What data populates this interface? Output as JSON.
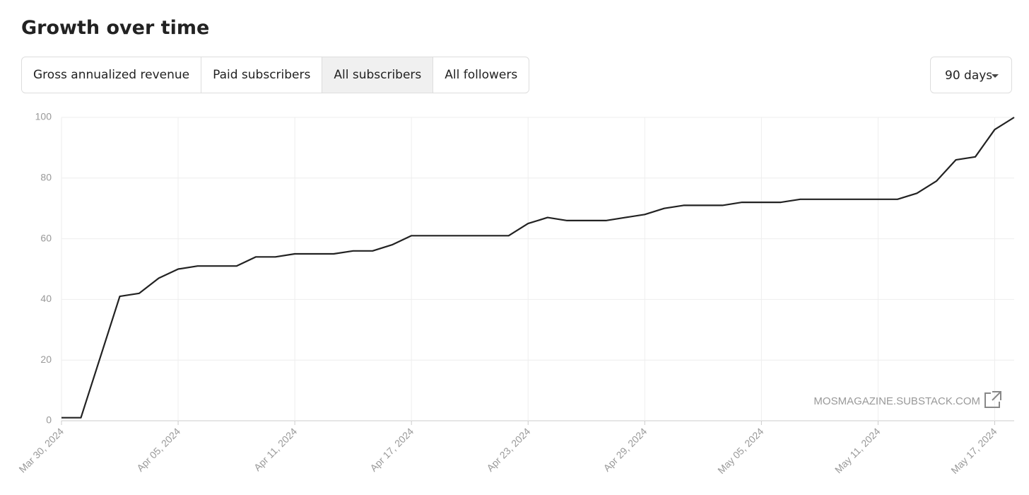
{
  "chart_data": {
    "type": "line",
    "title": "Growth over time",
    "x": [
      "2024-03-30",
      "2024-03-31",
      "2024-04-01",
      "2024-04-02",
      "2024-04-03",
      "2024-04-04",
      "2024-04-05",
      "2024-04-06",
      "2024-04-07",
      "2024-04-08",
      "2024-04-09",
      "2024-04-10",
      "2024-04-11",
      "2024-04-12",
      "2024-04-13",
      "2024-04-14",
      "2024-04-15",
      "2024-04-16",
      "2024-04-17",
      "2024-04-18",
      "2024-04-19",
      "2024-04-20",
      "2024-04-21",
      "2024-04-22",
      "2024-04-23",
      "2024-04-24",
      "2024-04-25",
      "2024-04-26",
      "2024-04-27",
      "2024-04-28",
      "2024-04-29",
      "2024-04-30",
      "2024-05-01",
      "2024-05-02",
      "2024-05-03",
      "2024-05-04",
      "2024-05-05",
      "2024-05-06",
      "2024-05-07",
      "2024-05-08",
      "2024-05-09",
      "2024-05-10",
      "2024-05-11",
      "2024-05-12",
      "2024-05-13",
      "2024-05-14",
      "2024-05-15",
      "2024-05-16",
      "2024-05-17",
      "2024-05-18"
    ],
    "values": [
      1,
      1,
      21,
      41,
      42,
      47,
      50,
      51,
      51,
      51,
      54,
      54,
      55,
      55,
      55,
      56,
      56,
      58,
      61,
      61,
      61,
      61,
      61,
      61,
      65,
      67,
      66,
      66,
      66,
      67,
      68,
      70,
      71,
      71,
      71,
      72,
      72,
      72,
      73,
      73,
      73,
      73,
      73,
      73,
      75,
      79,
      86,
      87,
      96,
      100
    ],
    "color": "#222222",
    "xlim": [
      "2024-03-30",
      "2024-05-18"
    ],
    "xticks": [
      {
        "value": "2024-03-30",
        "label": "Mar 30, 2024"
      },
      {
        "value": "2024-04-05",
        "label": "Apr 05, 2024"
      },
      {
        "value": "2024-04-11",
        "label": "Apr 11, 2024"
      },
      {
        "value": "2024-04-17",
        "label": "Apr 17, 2024"
      },
      {
        "value": "2024-04-23",
        "label": "Apr 23, 2024"
      },
      {
        "value": "2024-04-29",
        "label": "Apr 29, 2024"
      },
      {
        "value": "2024-05-05",
        "label": "May 05, 2024"
      },
      {
        "value": "2024-05-11",
        "label": "May 11, 2024"
      },
      {
        "value": "2024-05-17",
        "label": "May 17, 2024"
      }
    ],
    "ylim": [
      0,
      100
    ],
    "yticks": [
      0,
      20,
      40,
      60,
      80,
      100
    ],
    "grid": true
  },
  "tabs": [
    {
      "label": "Gross annualized revenue",
      "selected": false
    },
    {
      "label": "Paid subscribers",
      "selected": false
    },
    {
      "label": "All subscribers",
      "selected": true
    },
    {
      "label": "All followers",
      "selected": false
    }
  ],
  "range": "90 days",
  "watermark": "MOSMAGAZINE.SUBSTACK.COM"
}
